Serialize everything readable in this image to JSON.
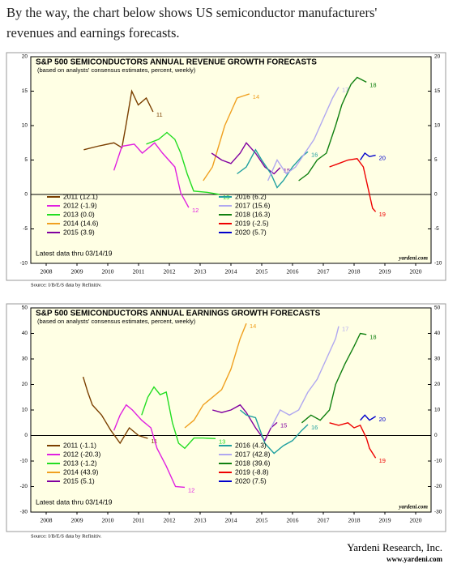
{
  "intro": "By the way, the chart below shows US semiconductor manufacturers' revenues and earnings forecasts.",
  "chart_data": [
    {
      "type": "line",
      "title": "S&P 500 SEMICONDUCTORS ANNUAL REVENUE GROWTH FORECASTS",
      "subtitle": "(based on analysts' consensus estimates, percent, weekly)",
      "note": "Latest data thru 03/14/19",
      "watermark": "yardeni.com",
      "source": "Source: I/B/E/S data by Refinitiv.",
      "xlim": [
        2008,
        2021
      ],
      "xticks": [
        {
          "value": 2008.5,
          "label": "2008"
        },
        {
          "value": 2009.5,
          "label": "2009"
        },
        {
          "value": 2010.5,
          "label": "2010"
        },
        {
          "value": 2011.5,
          "label": "2011"
        },
        {
          "value": 2012.5,
          "label": "2012"
        },
        {
          "value": 2013.5,
          "label": "2013"
        },
        {
          "value": 2014.5,
          "label": "2014"
        },
        {
          "value": 2015.5,
          "label": "2015"
        },
        {
          "value": 2016.5,
          "label": "2016"
        },
        {
          "value": 2017.5,
          "label": "2017"
        },
        {
          "value": 2018.5,
          "label": "2018"
        },
        {
          "value": 2019.5,
          "label": "2019"
        },
        {
          "value": 2020.5,
          "label": "2020"
        }
      ],
      "ylim": [
        -10,
        20
      ],
      "yticks": [
        -10,
        -5,
        0,
        5,
        10,
        15,
        20
      ],
      "series": [
        {
          "name": "2011 (12.1)",
          "label": "11",
          "color": "#7b3f00",
          "x": [
            2009.72,
            2010.17,
            2010.7,
            2010.96,
            2011.09,
            2011.28,
            2011.49,
            2011.75,
            2011.97
          ],
          "values": [
            6.5,
            7,
            7.5,
            6.8,
            10,
            15,
            13,
            14,
            12
          ]
        },
        {
          "name": "2012 (-1.9)",
          "label": "12",
          "color": "#e020e0",
          "x": [
            2010.7,
            2010.96,
            2011.36,
            2011.62,
            2012.02,
            2012.28,
            2012.68,
            2012.87,
            2013.13
          ],
          "values": [
            3.5,
            7,
            7.3,
            6,
            7.5,
            6,
            4,
            0.2,
            -1.9
          ]
        },
        {
          "name": "2013 (0.0)",
          "label": "13",
          "color": "#22dd22",
          "x": [
            2011.75,
            2012.15,
            2012.42,
            2012.68,
            2012.87,
            2013.08,
            2013.29,
            2013.74,
            2014.13
          ],
          "values": [
            7.3,
            8,
            9,
            8,
            6,
            3,
            0.5,
            0.3,
            0
          ]
        },
        {
          "name": "2014 (14.6)",
          "label": "14",
          "color": "#f0a020",
          "x": [
            2013.6,
            2013.9,
            2014.1,
            2014.3,
            2014.5,
            2014.7,
            2014.9,
            2015.1
          ],
          "values": [
            2,
            4,
            7,
            10,
            12,
            14,
            14.3,
            14.6
          ]
        },
        {
          "name": "2015 (3.9)",
          "label": "15",
          "color": "#8000a0",
          "x": [
            2013.87,
            2014.2,
            2014.5,
            2014.8,
            2015.0,
            2015.3,
            2015.6,
            2015.9,
            2016.1
          ],
          "values": [
            6,
            5,
            4.5,
            6,
            7.5,
            6,
            4,
            3,
            3.9
          ]
        },
        {
          "name": "2016 (6.2)",
          "label": "16",
          "color": "#20a0a0",
          "x": [
            2014.7,
            2015.0,
            2015.3,
            2015.5,
            2015.8,
            2016.0,
            2016.2,
            2016.5,
            2016.8,
            2017.0
          ],
          "values": [
            3,
            4,
            6.5,
            5,
            3,
            1,
            2,
            4,
            5.5,
            6.2
          ]
        },
        {
          "name": "2017 (15.6)",
          "label": "17",
          "color": "#b0a8f0",
          "x": [
            2015.7,
            2016.0,
            2016.3,
            2016.6,
            2016.9,
            2017.2,
            2017.5,
            2017.8,
            2018.0
          ],
          "values": [
            2,
            5,
            3,
            4,
            6,
            8,
            11,
            14,
            15.6
          ]
        },
        {
          "name": "2018 (16.3)",
          "label": "18",
          "color": "#108010",
          "x": [
            2016.7,
            2017.0,
            2017.3,
            2017.6,
            2017.9,
            2018.1,
            2018.4,
            2018.6,
            2018.9
          ],
          "values": [
            2,
            3,
            5,
            6,
            10,
            13,
            16,
            17,
            16.3
          ]
        },
        {
          "name": "2019 (-2.5)",
          "label": "19",
          "color": "#ee0000",
          "x": [
            2017.7,
            2018.0,
            2018.3,
            2018.6,
            2018.8,
            2018.95,
            2019.1,
            2019.2
          ],
          "values": [
            4,
            4.5,
            5,
            5.2,
            4,
            1,
            -2,
            -2.5
          ]
        },
        {
          "name": "2020 (5.7)",
          "label": "20",
          "color": "#0000cc",
          "x": [
            2018.7,
            2018.85,
            2019.0,
            2019.2
          ],
          "values": [
            5,
            6,
            5.5,
            5.7
          ]
        }
      ]
    },
    {
      "type": "line",
      "title": "S&P 500 SEMICONDUCTORS ANNUAL EARNINGS GROWTH FORECASTS",
      "subtitle": "(based on analysts' consensus estimates, percent, weekly)",
      "note": "Latest data thru 03/14/19",
      "watermark": "yardeni.com",
      "source": "Source: I/B/E/S data by Refinitiv.",
      "xlim": [
        2008,
        2021
      ],
      "xticks": [
        {
          "value": 2008.5,
          "label": "2008"
        },
        {
          "value": 2009.5,
          "label": "2009"
        },
        {
          "value": 2010.5,
          "label": "2010"
        },
        {
          "value": 2011.5,
          "label": "2011"
        },
        {
          "value": 2012.5,
          "label": "2012"
        },
        {
          "value": 2013.5,
          "label": "2013"
        },
        {
          "value": 2014.5,
          "label": "2014"
        },
        {
          "value": 2015.5,
          "label": "2015"
        },
        {
          "value": 2016.5,
          "label": "2016"
        },
        {
          "value": 2017.5,
          "label": "2017"
        },
        {
          "value": 2018.5,
          "label": "2018"
        },
        {
          "value": 2019.5,
          "label": "2019"
        },
        {
          "value": 2020.5,
          "label": "2020"
        }
      ],
      "ylim": [
        -30,
        50
      ],
      "yticks": [
        -30,
        -20,
        -10,
        0,
        10,
        20,
        30,
        40,
        50
      ],
      "series": [
        {
          "name": "2011 (-1.1)",
          "label": "11",
          "color": "#7b3f00",
          "x": [
            2009.7,
            2009.85,
            2010.0,
            2010.3,
            2010.6,
            2010.9,
            2011.2,
            2011.5,
            2011.8
          ],
          "values": [
            23,
            17,
            12,
            8,
            2,
            -3,
            3,
            0,
            -1.1
          ]
        },
        {
          "name": "2012 (-20.3)",
          "label": "12",
          "color": "#e020e0",
          "x": [
            2010.7,
            2010.9,
            2011.1,
            2011.3,
            2011.6,
            2011.9,
            2012.1,
            2012.4,
            2012.7,
            2013.0
          ],
          "values": [
            2,
            8,
            12,
            10,
            6,
            3,
            -5,
            -12,
            -20,
            -20.3
          ]
        },
        {
          "name": "2013 (-1.2)",
          "label": "13",
          "color": "#22dd22",
          "x": [
            2011.6,
            2011.8,
            2012.0,
            2012.2,
            2012.4,
            2012.6,
            2012.8,
            2013.0,
            2013.3,
            2013.6,
            2014.0
          ],
          "values": [
            8,
            15,
            19,
            16,
            17,
            5,
            -3,
            -5,
            -1,
            -1,
            -1.2
          ]
        },
        {
          "name": "2014 (43.9)",
          "label": "14",
          "color": "#f0a020",
          "x": [
            2013.0,
            2013.3,
            2013.6,
            2013.9,
            2014.2,
            2014.5,
            2014.8,
            2015.0
          ],
          "values": [
            3,
            6,
            12,
            15,
            18,
            26,
            38,
            43.9
          ]
        },
        {
          "name": "2015 (5.1)",
          "label": "15",
          "color": "#8000a0",
          "x": [
            2013.9,
            2014.2,
            2014.5,
            2014.8,
            2015.0,
            2015.3,
            2015.6,
            2015.8,
            2016.0
          ],
          "values": [
            10,
            9,
            10,
            12,
            9,
            3,
            -2,
            3,
            5.1
          ]
        },
        {
          "name": "2016 (4.3)",
          "label": "16",
          "color": "#20a0a0",
          "x": [
            2014.8,
            2015.0,
            2015.3,
            2015.6,
            2015.9,
            2016.2,
            2016.5,
            2016.8,
            2017.0
          ],
          "values": [
            10,
            8,
            7,
            -3,
            -7,
            -4,
            -2,
            2,
            4.3
          ]
        },
        {
          "name": "2017 (42.8)",
          "label": "17",
          "color": "#b0a8f0",
          "x": [
            2015.8,
            2016.1,
            2016.4,
            2016.7,
            2017.0,
            2017.3,
            2017.6,
            2017.9,
            2018.0
          ],
          "values": [
            3,
            10,
            8,
            10,
            17,
            22,
            30,
            38,
            42.8
          ]
        },
        {
          "name": "2018 (39.6)",
          "label": "18",
          "color": "#108010",
          "x": [
            2016.8,
            2017.1,
            2017.4,
            2017.7,
            2017.9,
            2018.2,
            2018.5,
            2018.7,
            2018.9
          ],
          "values": [
            5,
            8,
            6,
            10,
            20,
            28,
            35,
            40,
            39.6
          ]
        },
        {
          "name": "2019 (-8.8)",
          "label": "19",
          "color": "#ee0000",
          "x": [
            2017.7,
            2018.0,
            2018.3,
            2018.5,
            2018.7,
            2018.9,
            2019.0,
            2019.2
          ],
          "values": [
            5,
            4,
            5,
            3,
            4,
            -1,
            -5,
            -8.8
          ]
        },
        {
          "name": "2020 (7.5)",
          "label": "20",
          "color": "#0000cc",
          "x": [
            2018.7,
            2018.85,
            2019.0,
            2019.2
          ],
          "values": [
            6,
            8,
            6,
            7.5
          ]
        }
      ]
    }
  ],
  "footer": {
    "company": "Yardeni Research, Inc.",
    "url": "www.yardeni.com"
  }
}
